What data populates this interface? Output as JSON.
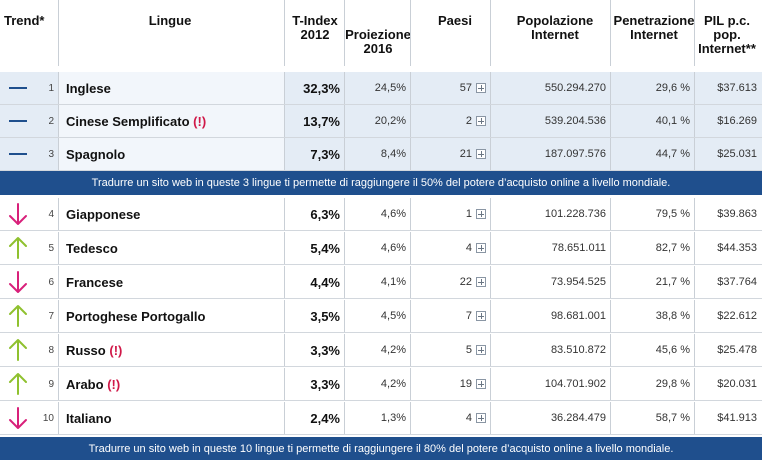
{
  "header": {
    "trend": "Trend*",
    "lingue": "Lingue",
    "tindex_line1": "T-Index",
    "tindex_line2": "2012",
    "proj_line1": "Proiezione",
    "proj_line2": "2016",
    "paesi": "Paesi",
    "pop_line1": "Popolazione",
    "pop_line2": "Internet",
    "pen_line1": "Penetrazione",
    "pen_line2": "Internet",
    "pil_line1": "PIL p.c.",
    "pil_line2": "pop.",
    "pil_line3": "Internet**"
  },
  "rows_top": [
    {
      "rank": "1",
      "trend": "flat",
      "lang": "Inglese",
      "warn": "",
      "tindex": "32,3%",
      "proj": "24,5%",
      "paesi": "57",
      "pop": "550.294.270",
      "pen": "29,6 %",
      "pil": "$37.613"
    },
    {
      "rank": "2",
      "trend": "flat",
      "lang": "Cinese Semplificato",
      "warn": "(!)",
      "tindex": "13,7%",
      "proj": "20,2%",
      "paesi": "2",
      "pop": "539.204.536",
      "pen": "40,1 %",
      "pil": "$16.269"
    },
    {
      "rank": "3",
      "trend": "flat",
      "lang": "Spagnolo",
      "warn": "",
      "tindex": "7,3%",
      "proj": "8,4%",
      "paesi": "21",
      "pop": "187.097.576",
      "pen": "44,7 %",
      "pil": "$25.031"
    }
  ],
  "banner1": "Tradurre un sito web in queste 3 lingue ti permette di raggiungere il 50% del potere d’acquisto online a livello mondiale.",
  "rows_bottom": [
    {
      "rank": "4",
      "trend": "down",
      "lang": "Giapponese",
      "warn": "",
      "tindex": "6,3%",
      "proj": "4,6%",
      "paesi": "1",
      "pop": "101.228.736",
      "pen": "79,5 %",
      "pil": "$39.863"
    },
    {
      "rank": "5",
      "trend": "up",
      "lang": "Tedesco",
      "warn": "",
      "tindex": "5,4%",
      "proj": "4,6%",
      "paesi": "4",
      "pop": "78.651.011",
      "pen": "82,7 %",
      "pil": "$44.353"
    },
    {
      "rank": "6",
      "trend": "down",
      "lang": "Francese",
      "warn": "",
      "tindex": "4,4%",
      "proj": "4,1%",
      "paesi": "22",
      "pop": "73.954.525",
      "pen": "21,7 %",
      "pil": "$37.764"
    },
    {
      "rank": "7",
      "trend": "up",
      "lang": "Portoghese Portogallo",
      "warn": "",
      "tindex": "3,5%",
      "proj": "4,5%",
      "paesi": "7",
      "pop": "98.681.001",
      "pen": "38,8 %",
      "pil": "$22.612"
    },
    {
      "rank": "8",
      "trend": "up",
      "lang": "Russo",
      "warn": "(!)",
      "tindex": "3,3%",
      "proj": "4,2%",
      "paesi": "5",
      "pop": "83.510.872",
      "pen": "45,6 %",
      "pil": "$25.478"
    },
    {
      "rank": "9",
      "trend": "up",
      "lang": "Arabo",
      "warn": "(!)",
      "tindex": "3,3%",
      "proj": "4,2%",
      "paesi": "19",
      "pop": "104.701.902",
      "pen": "29,8 %",
      "pil": "$20.031"
    },
    {
      "rank": "10",
      "trend": "down",
      "lang": "Italiano",
      "warn": "",
      "tindex": "2,4%",
      "proj": "1,3%",
      "paesi": "4",
      "pop": "36.284.479",
      "pen": "58,7 %",
      "pil": "$41.913"
    }
  ],
  "banner2": "Tradurre un sito web in queste 10 lingue ti permette di raggiungere il 80% del potere d’acquisto online a livello mondiale.",
  "colors": {
    "flat": "#1f4f8d",
    "up": "#8fc12f",
    "down": "#d8207a",
    "banner": "#1f4f8d"
  }
}
